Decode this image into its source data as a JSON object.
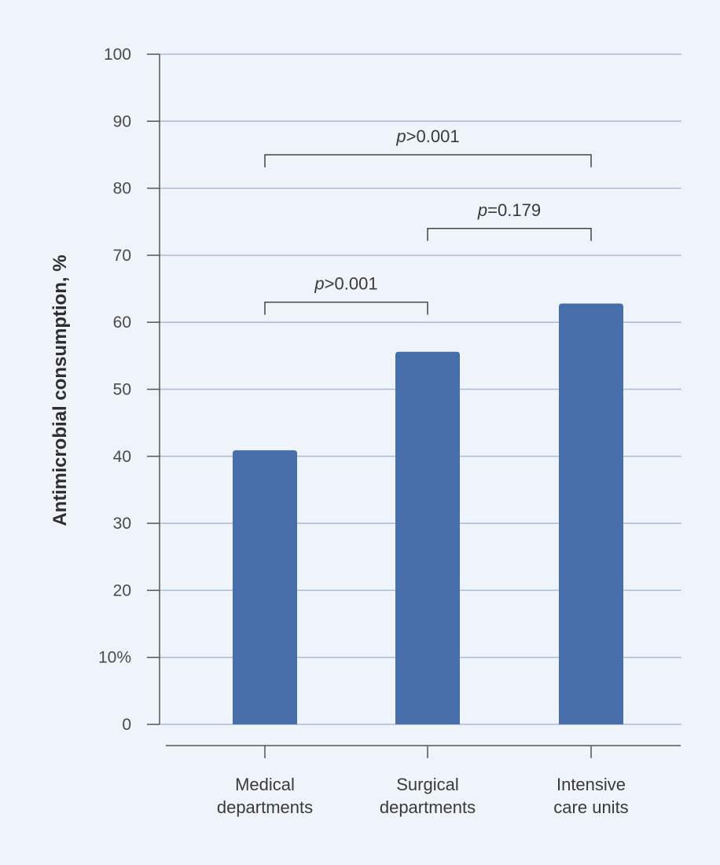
{
  "chart_data": {
    "type": "bar",
    "ylabel": "Antimicrobial consumption, %",
    "xlabel": "",
    "ylim": [
      0,
      100
    ],
    "yticks": [
      {
        "value": 0,
        "label": "0"
      },
      {
        "value": 10,
        "label": "10%"
      },
      {
        "value": 20,
        "label": "20"
      },
      {
        "value": 30,
        "label": "30"
      },
      {
        "value": 40,
        "label": "40"
      },
      {
        "value": 50,
        "label": "50"
      },
      {
        "value": 60,
        "label": "60"
      },
      {
        "value": 70,
        "label": "70"
      },
      {
        "value": 80,
        "label": "80"
      },
      {
        "value": 90,
        "label": "90"
      },
      {
        "value": 100,
        "label": "100"
      }
    ],
    "categories": [
      [
        "Medical",
        "departments"
      ],
      [
        "Surgical",
        "departments"
      ],
      [
        "Intensive",
        "care units"
      ]
    ],
    "values": [
      40.9,
      55.6,
      62.8
    ],
    "grid": true,
    "bar_color": "#476ea9",
    "grid_color": "#a9bcd9",
    "comparisons": [
      {
        "from": 0,
        "to": 1,
        "p_symbol": "p",
        "p_text": ">0.001",
        "level": 63
      },
      {
        "from": 1,
        "to": 2,
        "p_symbol": "p",
        "p_text": "=0.179",
        "level": 74
      },
      {
        "from": 0,
        "to": 2,
        "p_symbol": "p",
        "p_text": ">0.001",
        "level": 85
      }
    ]
  }
}
